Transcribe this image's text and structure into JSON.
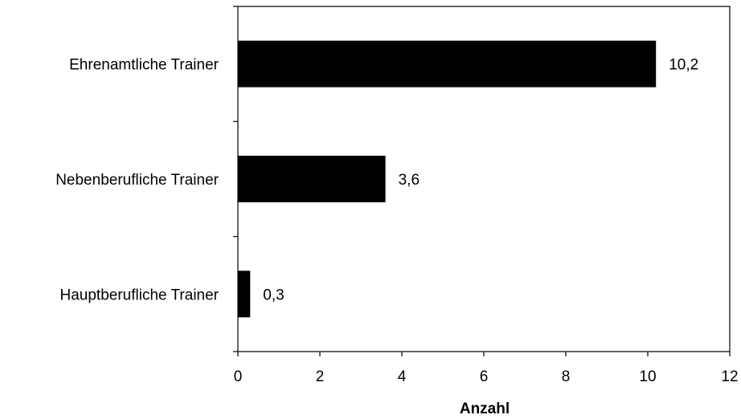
{
  "chart_data": {
    "type": "bar",
    "orientation": "horizontal",
    "categories": [
      "Ehrenamtliche Trainer",
      "Nebenberufliche Trainer",
      "Hauptberufliche Trainer"
    ],
    "values": [
      10.2,
      3.6,
      0.3
    ],
    "value_labels": [
      "10,2",
      "3,6",
      "0,3"
    ],
    "xlabel": "Anzahl",
    "ylabel": "",
    "title": "",
    "xlim": [
      0,
      12
    ],
    "xticks": [
      0,
      2,
      4,
      6,
      8,
      10,
      12
    ],
    "xtick_labels": [
      "0",
      "2",
      "4",
      "6",
      "8",
      "10",
      "12"
    ],
    "bar_color": "#000000",
    "grid": false,
    "legend": "none"
  }
}
